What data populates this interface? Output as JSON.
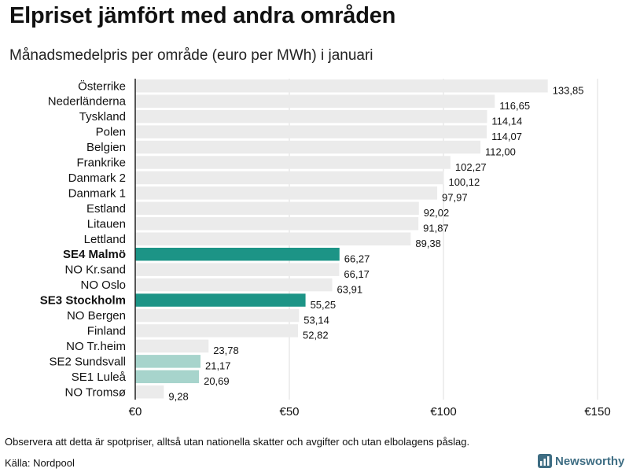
{
  "header": {
    "title": "Elpriset jämfört med andra områden",
    "subtitle": "Månadsmedelpris per område (euro per MWh) i januari"
  },
  "footer": {
    "note": "Observera att detta är spotpriser, alltså utan nationella skatter och avgifter och utan elbolagens påslag.",
    "source": "Källa: Nordpool",
    "brand": "Newsworthy"
  },
  "colors": {
    "bar_default": "#ebebeb",
    "bar_highlight": "#1c9486",
    "bar_light": "#a7d4cc",
    "axis": "#222222",
    "grid": "#dddddd",
    "brand": "#3e6d83"
  },
  "chart_data": {
    "type": "bar",
    "orientation": "horizontal",
    "title": "Elpriset jämfört med andra områden",
    "subtitle": "Månadsmedelpris per område (euro per MWh) i januari",
    "xlabel": "",
    "ylabel": "",
    "xlim": [
      0,
      150
    ],
    "ticks": [
      0,
      50,
      100,
      150
    ],
    "tick_labels": [
      "€0",
      "€50",
      "€100",
      "€150"
    ],
    "grid": true,
    "categories": [
      "Österrike",
      "Nederländerna",
      "Tyskland",
      "Polen",
      "Belgien",
      "Frankrike",
      "Danmark  2",
      "Danmark  1",
      "Estland",
      "Litauen",
      "Lettland",
      "SE4 Malmö",
      "NO Kr.sand",
      "NO Oslo",
      "SE3 Stockholm",
      "NO Bergen",
      "Finland",
      "NO Tr.heim",
      "SE2  Sundsvall",
      "SE1  Luleå",
      "NO Tromsø"
    ],
    "values": [
      133.85,
      116.65,
      114.14,
      114.07,
      112.0,
      102.27,
      100.12,
      97.97,
      92.02,
      91.87,
      89.38,
      66.27,
      66.17,
      63.91,
      55.25,
      53.14,
      52.82,
      23.78,
      21.17,
      20.69,
      9.28
    ],
    "value_labels": [
      "133,85",
      "116,65",
      "114,14",
      "114,07",
      "112,00",
      "102,27",
      "100,12",
      "97,97",
      "92,02",
      "91,87",
      "89,38",
      "66,27",
      "66,17",
      "63,91",
      "55,25",
      "53,14",
      "52,82",
      "23,78",
      "21,17",
      "20,69",
      "9,28"
    ],
    "highlight": [
      false,
      false,
      false,
      false,
      false,
      false,
      false,
      false,
      false,
      false,
      false,
      true,
      false,
      false,
      true,
      false,
      false,
      false,
      false,
      false,
      false
    ],
    "bold_labels": [
      false,
      false,
      false,
      false,
      false,
      false,
      false,
      false,
      false,
      false,
      false,
      true,
      false,
      false,
      true,
      false,
      false,
      false,
      false,
      false,
      false
    ],
    "light_highlight": [
      false,
      false,
      false,
      false,
      false,
      false,
      false,
      false,
      false,
      false,
      false,
      false,
      false,
      false,
      false,
      false,
      false,
      false,
      true,
      true,
      false
    ]
  }
}
